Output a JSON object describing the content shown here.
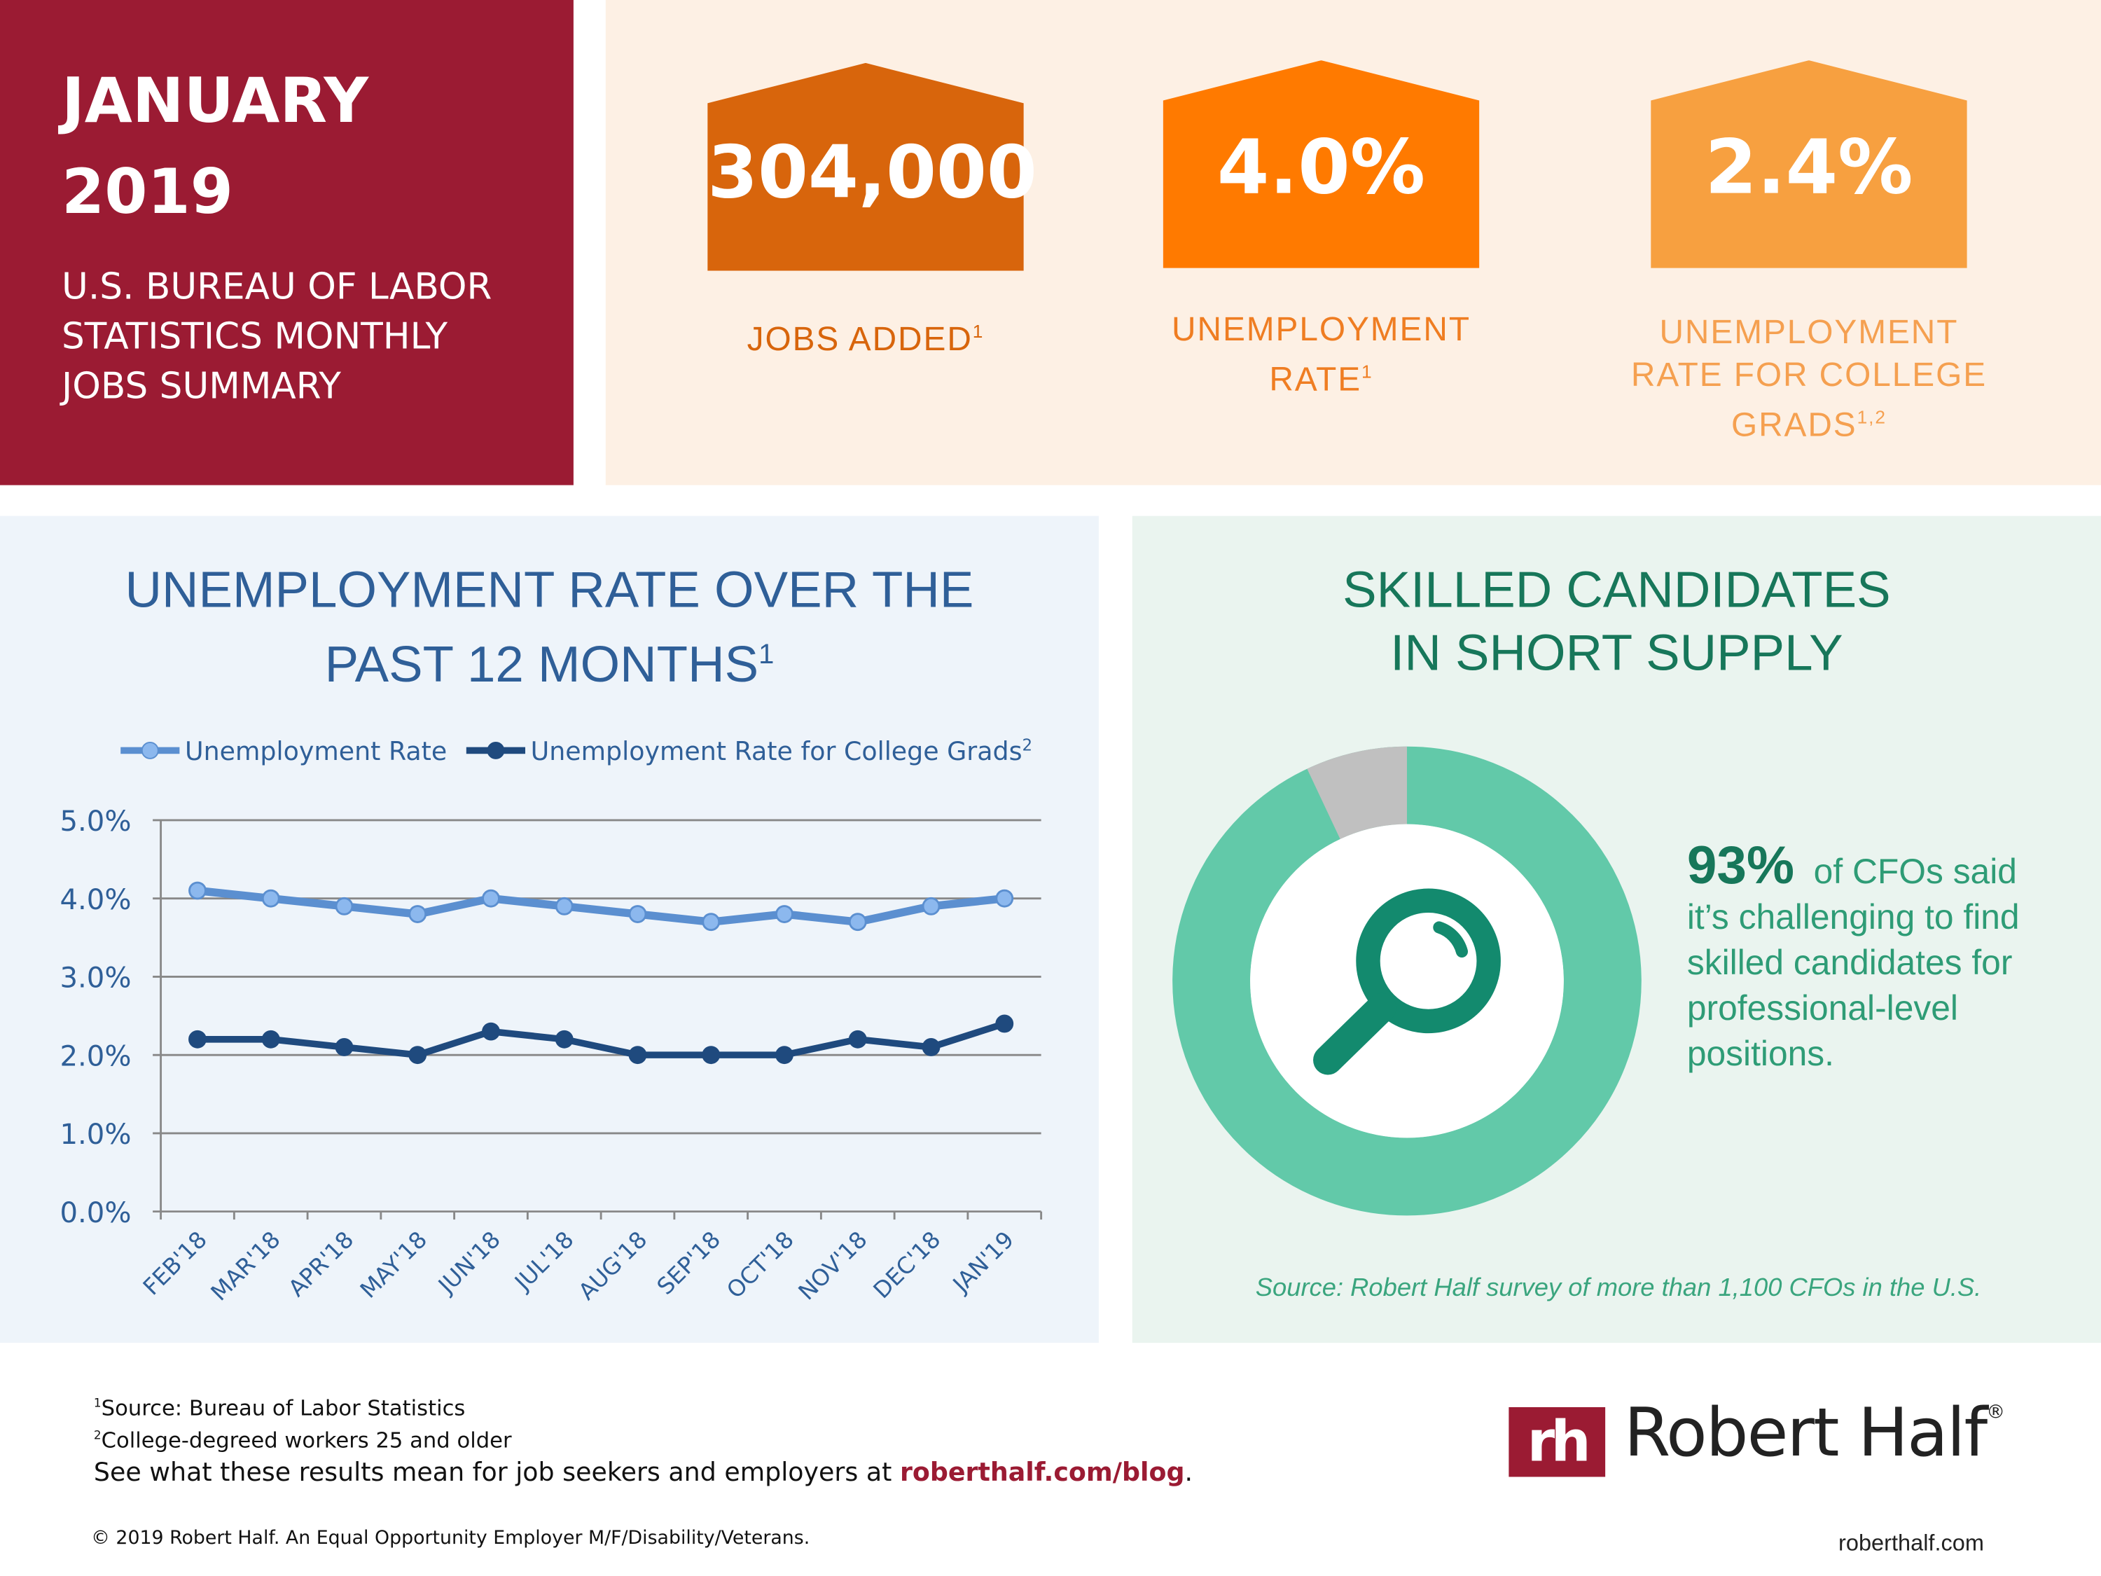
{
  "header": {
    "month": "JANUARY",
    "year": "2019",
    "subtitle_lines": [
      "U.S. BUREAU OF LABOR",
      "STATISTICS MONTHLY",
      "JOBS SUMMARY"
    ]
  },
  "stats": [
    {
      "value": "304,000",
      "label_lines": [
        "JOBS ADDED"
      ],
      "sup": "1",
      "color": "#d8650c"
    },
    {
      "value": "4.0%",
      "label_lines": [
        "UNEMPLOYMENT",
        "RATE"
      ],
      "sup": "1",
      "color": "#ff7a00"
    },
    {
      "value": "2.4%",
      "label_lines": [
        "UNEMPLOYMENT",
        "RATE FOR COLLEGE",
        "GRADS"
      ],
      "sup": "1,2",
      "color": "#f7a040"
    }
  ],
  "chart_panel": {
    "title_line1": "UNEMPLOYMENT RATE OVER THE",
    "title_line2": "PAST 12 MONTHS",
    "title_sup": "1"
  },
  "chart_data": {
    "type": "line",
    "categories": [
      "FEB'18",
      "MAR'18",
      "APR'18",
      "MAY'18",
      "JUN'18",
      "JUL'18",
      "AUG'18",
      "SEP'18",
      "OCT'18",
      "NOV'18",
      "DEC'18",
      "JAN'19"
    ],
    "series": [
      {
        "name": "Unemployment Rate",
        "values": [
          4.1,
          4.0,
          3.9,
          3.8,
          4.0,
          3.9,
          3.8,
          3.7,
          3.8,
          3.7,
          3.9,
          4.0
        ],
        "color": "#5b8fd0"
      },
      {
        "name": "Unemployment Rate for College Grads",
        "name_sup": "2",
        "values": [
          2.2,
          2.2,
          2.1,
          2.0,
          2.3,
          2.2,
          2.0,
          2.0,
          2.0,
          2.2,
          2.1,
          2.4
        ],
        "color": "#1f4a7e"
      }
    ],
    "yticks": [
      "0.0%",
      "1.0%",
      "2.0%",
      "3.0%",
      "4.0%",
      "5.0%"
    ],
    "ylim": [
      0,
      5
    ],
    "grid": true,
    "legend": "top"
  },
  "skills_panel": {
    "title_line1": "SKILLED CANDIDATES",
    "title_line2": "IN SHORT SUPPLY",
    "percent": "93%",
    "percent_value": 93,
    "text_first": "of CFOs said",
    "text_lines": [
      "it’s challenging to find",
      "skilled candidates for",
      "professional-level",
      "positions."
    ],
    "source": "Source: Robert Half survey of more than 1,100 CFOs in the U.S.",
    "donut_color": "#62c9a9",
    "rest_color": "#c0c0c0"
  },
  "footer": {
    "note1_sup": "1",
    "note1": "Source: Bureau of Labor Statistics",
    "note2_sup": "2",
    "note2": "College-degreed workers 25 and older",
    "cta": "See what these results mean for job seekers and employers at ",
    "cta_link": "roberthalf.com/blog",
    "cta_end": ".",
    "copyright": "© 2019 Robert Half. An Equal Opportunity Employer M/F/Disability/Veterans.",
    "logo_mark": "rh",
    "logo_text": "Robert Half",
    "logo_reg": "®",
    "site": "roberthalf.com"
  }
}
